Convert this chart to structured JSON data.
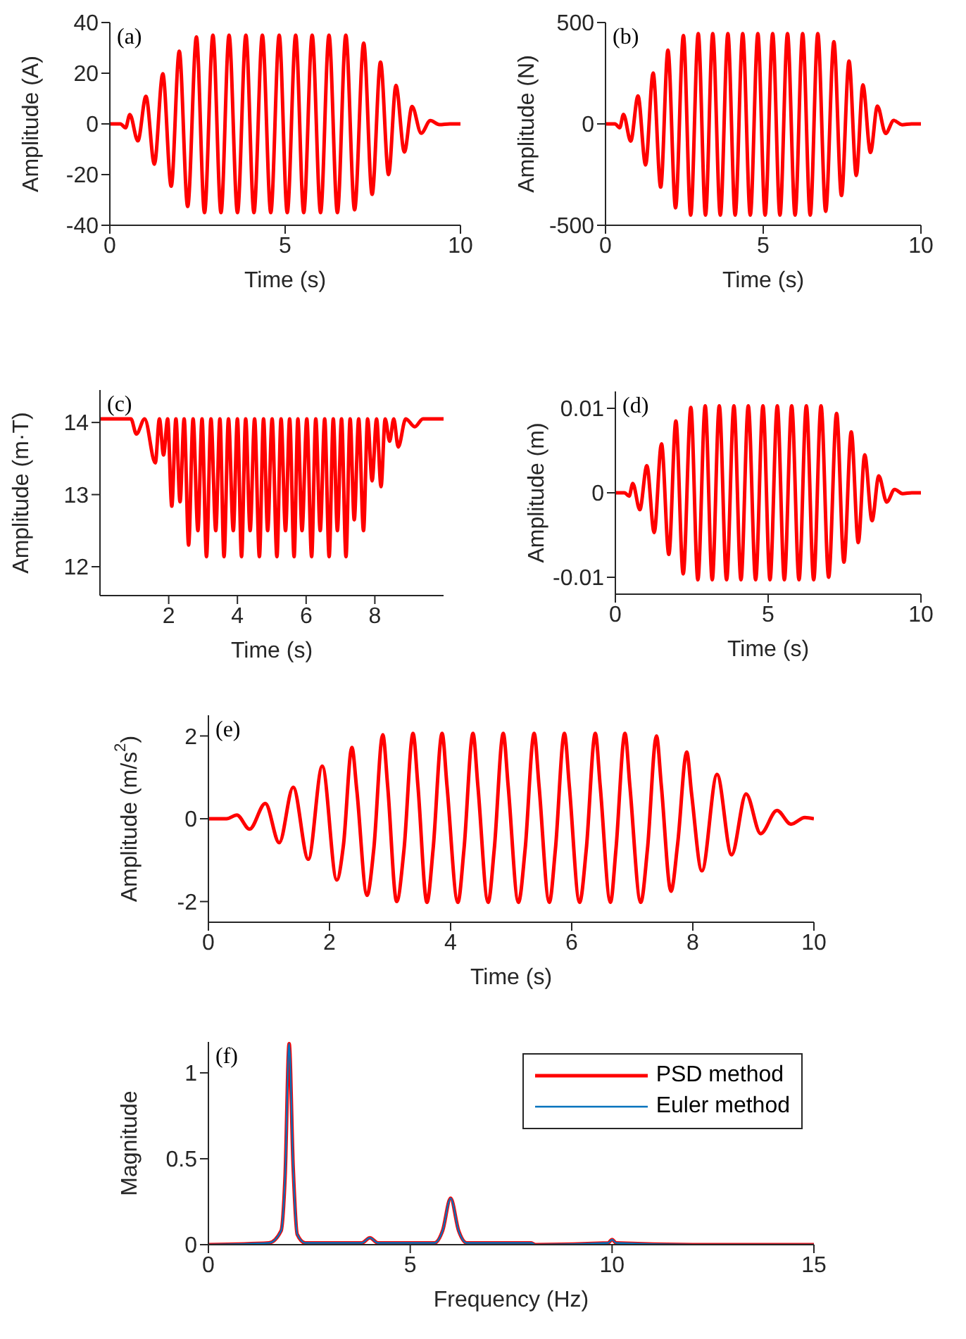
{
  "chart_data": [
    {
      "type": "line",
      "annotations": [
        "(a)"
      ],
      "xlabel": "Time (s)",
      "ylabel": "Amplitude (A)",
      "color": "#ff0000",
      "xlim": [
        0,
        10
      ],
      "ylim": [
        -40,
        40
      ],
      "xticks": [
        0,
        5,
        10
      ],
      "yticks": [
        -40,
        -20,
        0,
        20,
        40
      ],
      "x": [
        0,
        0.3,
        0.45,
        0.57,
        0.8,
        1.03,
        1.27,
        1.51,
        1.75,
        1.98,
        2.22,
        2.47,
        2.7,
        2.94,
        3.17,
        3.4,
        3.64,
        3.88,
        4.11,
        4.35,
        4.59,
        4.83,
        5.06,
        5.3,
        5.53,
        5.77,
        6.01,
        6.25,
        6.49,
        6.73,
        6.98,
        7.24,
        7.48,
        7.72,
        7.95,
        8.16,
        8.4,
        8.62,
        8.88,
        9.14,
        9.4,
        9.7,
        10
      ],
      "values": [
        0,
        0,
        -1.5,
        3.7,
        -6.7,
        10.9,
        -15.9,
        19.8,
        -24.6,
        28.7,
        -32.6,
        34.3,
        -35,
        35,
        -35,
        35,
        -35,
        35,
        -35,
        35,
        -35,
        35,
        -35,
        35,
        -35,
        35,
        -35,
        35,
        -35,
        35,
        -33.9,
        31.9,
        -27.8,
        24.4,
        -20,
        15.2,
        -11.1,
        6.9,
        -3.7,
        1.3,
        -0.3,
        0,
        0
      ]
    },
    {
      "type": "line",
      "annotations": [
        "(b)"
      ],
      "xlabel": "Time (s)",
      "ylabel": "Amplitude (N)",
      "color": "#ff0000",
      "xlim": [
        0,
        10
      ],
      "ylim": [
        -500,
        500
      ],
      "xticks": [
        0,
        5,
        10
      ],
      "yticks": [
        -500,
        0,
        500
      ],
      "x": [
        0,
        0.3,
        0.45,
        0.57,
        0.8,
        1.03,
        1.27,
        1.51,
        1.75,
        1.98,
        2.22,
        2.47,
        2.7,
        2.94,
        3.17,
        3.4,
        3.64,
        3.88,
        4.11,
        4.35,
        4.59,
        4.83,
        5.06,
        5.3,
        5.53,
        5.77,
        6.01,
        6.25,
        6.49,
        6.73,
        6.98,
        7.24,
        7.48,
        7.72,
        7.95,
        8.16,
        8.4,
        8.62,
        8.88,
        9.14,
        9.4,
        9.7,
        10
      ],
      "values": [
        0,
        0,
        -19,
        47,
        -85,
        138,
        -202,
        251,
        -312,
        364,
        -414,
        436,
        -450,
        445,
        -450,
        445,
        -450,
        445,
        -450,
        445,
        -450,
        445,
        -450,
        445,
        -450,
        445,
        -450,
        445,
        -450,
        445,
        -431,
        405,
        -353,
        310,
        -254,
        193,
        -141,
        88,
        -47,
        17,
        -4,
        0,
        0
      ]
    },
    {
      "type": "line",
      "annotations": [
        "(c)"
      ],
      "xlabel": "Time (s)",
      "ylabel": "Amplitude (m·T)",
      "color": "#ff0000",
      "xlim": [
        0,
        10
      ],
      "ylim": [
        11.6,
        14.45
      ],
      "xticks": [
        2,
        4,
        6,
        8
      ],
      "yticks": [
        12,
        13,
        14
      ],
      "x": [
        0,
        0.9,
        1.06,
        1.3,
        1.61,
        1.73,
        1.85,
        1.97,
        2.09,
        2.21,
        2.33,
        2.45,
        2.58,
        2.71,
        2.85,
        2.97,
        3.1,
        3.23,
        3.37,
        3.49,
        3.61,
        3.74,
        3.88,
        4,
        4.12,
        4.24,
        4.37,
        4.5,
        4.64,
        4.76,
        4.88,
        5.01,
        5.15,
        5.27,
        5.4,
        5.52,
        5.65,
        5.76,
        5.88,
        6.02,
        6.16,
        6.28,
        6.41,
        6.54,
        6.67,
        6.79,
        6.91,
        7.03,
        7.16,
        7.28,
        7.4,
        7.53,
        7.67,
        7.79,
        7.92,
        8.05,
        8.18,
        8.3,
        8.43,
        8.55,
        8.68,
        8.9,
        9.16,
        9.4,
        10
      ],
      "values": [
        14.05,
        14.05,
        13.84,
        14.05,
        13.44,
        14.05,
        13.55,
        14.05,
        12.84,
        14.05,
        12.9,
        14.05,
        12.3,
        14.05,
        12.5,
        14.05,
        12.14,
        14.05,
        12.5,
        14.05,
        12.14,
        14.05,
        12.5,
        14.05,
        12.14,
        14.05,
        12.5,
        14.05,
        12.14,
        14.05,
        12.5,
        14.05,
        12.14,
        14.05,
        12.5,
        14.05,
        12.14,
        14.05,
        12.5,
        14.05,
        12.14,
        14.05,
        12.5,
        14.05,
        12.14,
        14.05,
        12.5,
        14.05,
        12.14,
        14.05,
        12.65,
        14.05,
        12.5,
        14.05,
        13.19,
        14.05,
        13.11,
        14.05,
        13.74,
        14.05,
        13.66,
        14.05,
        13.94,
        14.05,
        14.05
      ]
    },
    {
      "type": "line",
      "annotations": [
        "(d)"
      ],
      "xlabel": "Time (s)",
      "ylabel": "Amplitude (m)",
      "color": "#ff0000",
      "xlim": [
        0,
        10
      ],
      "ylim": [
        -0.012,
        0.012
      ],
      "xticks": [
        0,
        5,
        10
      ],
      "yticks": [
        -0.01,
        0,
        0.01
      ],
      "x": [
        0,
        0.3,
        0.45,
        0.57,
        0.8,
        1.03,
        1.27,
        1.51,
        1.75,
        1.98,
        2.22,
        2.47,
        2.7,
        2.94,
        3.17,
        3.4,
        3.64,
        3.88,
        4.11,
        4.35,
        4.59,
        4.83,
        5.06,
        5.3,
        5.53,
        5.77,
        6.01,
        6.25,
        6.49,
        6.73,
        6.98,
        7.24,
        7.48,
        7.72,
        7.95,
        8.16,
        8.4,
        8.62,
        8.88,
        9.14,
        9.4,
        9.7,
        10
      ],
      "values": [
        0,
        0,
        -0.0004,
        0.0011,
        -0.002,
        0.0032,
        -0.0047,
        0.0058,
        -0.0073,
        0.0085,
        -0.0096,
        0.0101,
        -0.0103,
        0.0103,
        -0.0103,
        0.0103,
        -0.0103,
        0.0103,
        -0.0103,
        0.0103,
        -0.0103,
        0.0103,
        -0.0103,
        0.0103,
        -0.0103,
        0.0103,
        -0.0103,
        0.0103,
        -0.0103,
        0.0103,
        -0.01,
        0.0094,
        -0.0082,
        0.0072,
        -0.0059,
        0.0045,
        -0.0033,
        0.002,
        -0.0011,
        0.0004,
        -0.0001,
        0,
        0
      ]
    },
    {
      "type": "line",
      "annotations": [
        "(e)"
      ],
      "xlabel": "Time (s)",
      "ylabel": "Amplitude (m/s$^{2}$)",
      "color": "#ff0000",
      "xlim": [
        0,
        10
      ],
      "ylim": [
        -2.5,
        2.5
      ],
      "xticks": [
        0,
        2,
        4,
        6,
        8,
        10
      ],
      "yticks": [
        -2,
        0,
        2
      ],
      "x": [
        0,
        0.3,
        0.47,
        0.68,
        0.94,
        1.17,
        1.4,
        1.65,
        1.88,
        2.12,
        2.23,
        2.37,
        2.45,
        2.62,
        2.73,
        2.88,
        2.96,
        3.11,
        3.23,
        3.38,
        3.46,
        3.61,
        3.71,
        3.86,
        3.94,
        4.12,
        4.22,
        4.37,
        4.45,
        4.62,
        4.72,
        4.87,
        4.95,
        5.12,
        5.23,
        5.38,
        5.46,
        5.63,
        5.73,
        5.88,
        5.96,
        6.13,
        6.24,
        6.39,
        6.47,
        6.64,
        6.73,
        6.88,
        6.96,
        7.14,
        7.25,
        7.4,
        7.48,
        7.64,
        7.75,
        7.9,
        7.98,
        8.15,
        8.4,
        8.64,
        8.88,
        9.12,
        9.39,
        9.62,
        9.85,
        10
      ],
      "values": [
        0,
        0,
        0.09,
        -0.25,
        0.37,
        -0.58,
        0.76,
        -0.98,
        1.27,
        -1.48,
        -0.64,
        1.72,
        0.7,
        -1.85,
        -0.75,
        2.03,
        0.8,
        -2,
        -0.75,
        2.06,
        0.8,
        -2.02,
        -0.75,
        2.06,
        0.8,
        -2.02,
        -0.75,
        2.06,
        0.8,
        -2.02,
        -0.75,
        2.06,
        0.8,
        -2.02,
        -0.75,
        2.06,
        0.8,
        -2.02,
        -0.75,
        2.06,
        0.8,
        -2.02,
        -0.75,
        2.06,
        0.8,
        -2.02,
        -0.75,
        2.06,
        0.8,
        -2.02,
        -0.75,
        2,
        0.8,
        -1.75,
        -0.6,
        1.61,
        0.6,
        -1.26,
        1.07,
        -0.87,
        0.6,
        -0.36,
        0.2,
        -0.13,
        0.03,
        0
      ]
    },
    {
      "type": "line",
      "annotations": [
        "(f)"
      ],
      "xlabel": "Frequency (Hz)",
      "ylabel": "Magnitude",
      "legend": "top right",
      "xlim": [
        0,
        15
      ],
      "ylim": [
        0,
        1.18
      ],
      "xticks": [
        0,
        5,
        10,
        15
      ],
      "yticks": [
        0,
        0.5,
        1
      ],
      "x": [
        0,
        1.5,
        1.8,
        1.9,
        2,
        2.1,
        2.2,
        2.4,
        3.8,
        4,
        4.2,
        5.6,
        5.8,
        6,
        6.2,
        6.4,
        7.9,
        8,
        8.1,
        9.9,
        10,
        10.1,
        12,
        15
      ],
      "series": [
        {
          "name": "PSD method",
          "color": "#ff0000",
          "values": [
            0,
            0.01,
            0.08,
            0.4,
            1.17,
            0.45,
            0.06,
            0.01,
            0.01,
            0.04,
            0.01,
            0.01,
            0.08,
            0.27,
            0.08,
            0.01,
            0.01,
            0.01,
            0,
            0.01,
            0.03,
            0.01,
            0,
            0
          ]
        },
        {
          "name": "Euler method",
          "color": "#0072bd",
          "values": [
            0,
            0.01,
            0.08,
            0.4,
            1.17,
            0.45,
            0.06,
            0.01,
            0.01,
            0.04,
            0.01,
            0.01,
            0.08,
            0.27,
            0.08,
            0.01,
            0.01,
            0.01,
            0,
            0.01,
            0.03,
            0.01,
            0,
            0
          ]
        }
      ]
    }
  ]
}
